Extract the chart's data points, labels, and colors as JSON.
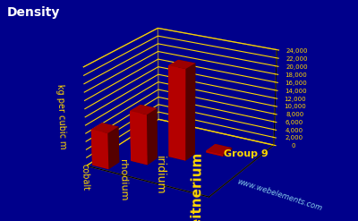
{
  "title": "Density",
  "ylabel": "kg per cubic m",
  "xlabel": "Group 9",
  "website": "www.webelements.com",
  "background_color": "#00008B",
  "bar_color": "#CC0000",
  "grid_color": "#FFD700",
  "title_color": "#FFFFFF",
  "label_color": "#FFD700",
  "website_color": "#87CEEB",
  "elements": [
    "cobalt",
    "rhodium",
    "iridium",
    "meitnerium"
  ],
  "values": [
    8900,
    12450,
    22560,
    500
  ],
  "ymax": 24000,
  "yticks": [
    0,
    2000,
    4000,
    6000,
    8000,
    10000,
    12000,
    14000,
    16000,
    18000,
    20000,
    22000,
    24000
  ],
  "ytick_labels": [
    "0",
    "2,000",
    "4,000",
    "6,000",
    "8,000",
    "10,000",
    "12,000",
    "14,000",
    "16,000",
    "18,000",
    "20,000",
    "22,000",
    "24,000"
  ],
  "elev": 22,
  "azim": -60
}
